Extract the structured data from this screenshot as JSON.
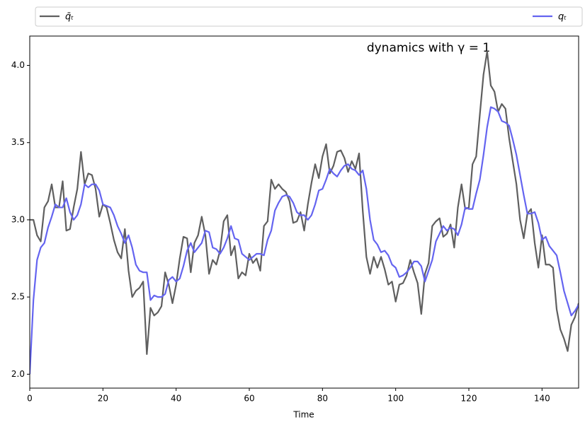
{
  "chart_data": {
    "type": "line",
    "annotation": "dynamics with γ = 1",
    "xlabel": "Time",
    "x": [
      0,
      1,
      2,
      3,
      4,
      5,
      6,
      7,
      8,
      9,
      10,
      11,
      12,
      13,
      14,
      15,
      16,
      17,
      18,
      19,
      20,
      21,
      22,
      23,
      24,
      25,
      26,
      27,
      28,
      29,
      30,
      31,
      32,
      33,
      34,
      35,
      36,
      37,
      38,
      39,
      40,
      41,
      42,
      43,
      44,
      45,
      46,
      47,
      48,
      49,
      50,
      51,
      52,
      53,
      54,
      55,
      56,
      57,
      58,
      59,
      60,
      61,
      62,
      63,
      64,
      65,
      66,
      67,
      68,
      69,
      70,
      71,
      72,
      73,
      74,
      75,
      76,
      77,
      78,
      79,
      80,
      81,
      82,
      83,
      84,
      85,
      86,
      87,
      88,
      89,
      90,
      91,
      92,
      93,
      94,
      95,
      96,
      97,
      98,
      99,
      100,
      101,
      102,
      103,
      104,
      105,
      106,
      107,
      108,
      109,
      110,
      111,
      112,
      113,
      114,
      115,
      116,
      117,
      118,
      119,
      120,
      121,
      122,
      123,
      124,
      125,
      126,
      127,
      128,
      129,
      130,
      131,
      132,
      133,
      134,
      135,
      136,
      137,
      138,
      139,
      140,
      141,
      142,
      143,
      144,
      145,
      146,
      147,
      148,
      149,
      150
    ],
    "series": [
      {
        "name": "q̄ₜ",
        "color": "#5f5f5f",
        "values": [
          3.0,
          3.0,
          2.9,
          2.86,
          3.08,
          3.12,
          3.23,
          3.08,
          3.08,
          3.25,
          2.93,
          2.94,
          3.08,
          3.2,
          3.44,
          3.23,
          3.3,
          3.29,
          3.2,
          3.02,
          3.1,
          3.08,
          2.98,
          2.87,
          2.79,
          2.75,
          2.94,
          2.67,
          2.5,
          2.54,
          2.56,
          2.6,
          2.13,
          2.43,
          2.38,
          2.4,
          2.44,
          2.66,
          2.58,
          2.46,
          2.58,
          2.75,
          2.89,
          2.88,
          2.66,
          2.85,
          2.9,
          3.02,
          2.9,
          2.65,
          2.74,
          2.71,
          2.8,
          2.99,
          3.03,
          2.77,
          2.83,
          2.62,
          2.66,
          2.64,
          2.78,
          2.72,
          2.75,
          2.67,
          2.96,
          2.99,
          3.26,
          3.2,
          3.23,
          3.2,
          3.18,
          3.12,
          2.98,
          2.99,
          3.05,
          2.93,
          3.1,
          3.24,
          3.36,
          3.27,
          3.41,
          3.49,
          3.3,
          3.35,
          3.44,
          3.45,
          3.4,
          3.31,
          3.38,
          3.33,
          3.43,
          3.06,
          2.76,
          2.65,
          2.76,
          2.69,
          2.76,
          2.68,
          2.58,
          2.6,
          2.47,
          2.58,
          2.59,
          2.64,
          2.74,
          2.66,
          2.59,
          2.39,
          2.65,
          2.72,
          2.96,
          2.99,
          3.01,
          2.89,
          2.91,
          2.97,
          2.82,
          3.08,
          3.23,
          3.07,
          3.08,
          3.36,
          3.41,
          3.68,
          3.94,
          4.09,
          3.87,
          3.83,
          3.7,
          3.75,
          3.72,
          3.53,
          3.38,
          3.23,
          3.0,
          2.88,
          3.04,
          3.07,
          2.85,
          2.69,
          2.9,
          2.71,
          2.71,
          2.69,
          2.42,
          2.29,
          2.23,
          2.15,
          2.32,
          2.37,
          2.46
        ]
      },
      {
        "name": "qₜ",
        "color": "#6464f0",
        "values": [
          2.0,
          2.48,
          2.74,
          2.82,
          2.85,
          2.95,
          3.02,
          3.1,
          3.08,
          3.08,
          3.14,
          3.05,
          3.0,
          3.03,
          3.1,
          3.23,
          3.21,
          3.23,
          3.23,
          3.19,
          3.1,
          3.09,
          3.08,
          3.03,
          2.96,
          2.91,
          2.85,
          2.9,
          2.82,
          2.71,
          2.67,
          2.66,
          2.66,
          2.48,
          2.51,
          2.5,
          2.5,
          2.52,
          2.61,
          2.63,
          2.6,
          2.62,
          2.7,
          2.8,
          2.85,
          2.79,
          2.82,
          2.85,
          2.93,
          2.92,
          2.82,
          2.81,
          2.78,
          2.82,
          2.88,
          2.96,
          2.88,
          2.87,
          2.78,
          2.76,
          2.74,
          2.76,
          2.78,
          2.78,
          2.77,
          2.87,
          2.93,
          3.06,
          3.11,
          3.15,
          3.16,
          3.15,
          3.11,
          3.05,
          3.03,
          3.03,
          3.0,
          3.03,
          3.1,
          3.19,
          3.2,
          3.26,
          3.33,
          3.3,
          3.28,
          3.32,
          3.35,
          3.36,
          3.33,
          3.32,
          3.29,
          3.32,
          3.2,
          3.0,
          2.87,
          2.84,
          2.79,
          2.8,
          2.77,
          2.71,
          2.69,
          2.63,
          2.64,
          2.66,
          2.69,
          2.73,
          2.73,
          2.7,
          2.6,
          2.67,
          2.74,
          2.86,
          2.91,
          2.96,
          2.93,
          2.95,
          2.94,
          2.9,
          2.97,
          3.08,
          3.07,
          3.07,
          3.17,
          3.26,
          3.42,
          3.6,
          3.73,
          3.72,
          3.7,
          3.64,
          3.63,
          3.61,
          3.52,
          3.42,
          3.29,
          3.16,
          3.04,
          3.04,
          3.05,
          2.98,
          2.87,
          2.89,
          2.83,
          2.8,
          2.77,
          2.66,
          2.54,
          2.46,
          2.38,
          2.41,
          2.45
        ]
      }
    ],
    "xlim": [
      0,
      150
    ],
    "xticks": [
      0,
      20,
      40,
      60,
      80,
      100,
      120,
      140
    ],
    "ylim": [
      1.91,
      4.19
    ],
    "yticks": [
      {
        "value": 2,
        "label": "2.0"
      },
      2.5,
      {
        "value": 3,
        "label": "3.0"
      },
      3.5,
      {
        "value": 4,
        "label": "4.0"
      }
    ],
    "legend": "top-outside"
  }
}
